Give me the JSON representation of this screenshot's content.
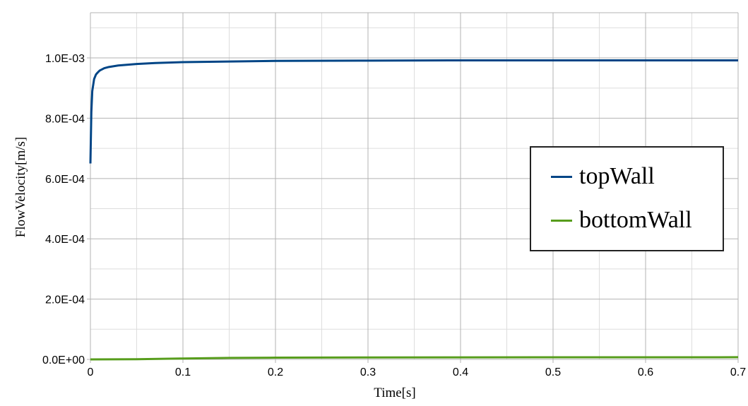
{
  "chart_data": {
    "type": "line",
    "xlabel": "Time[s]",
    "ylabel": "FlowVelocity[m/s]",
    "xlim": [
      0,
      0.7
    ],
    "ylim": [
      0,
      0.00115
    ],
    "x_ticks": [
      "0",
      "0.1",
      "0.2",
      "0.3",
      "0.4",
      "0.5",
      "0.6",
      "0.7"
    ],
    "x_tick_values": [
      0,
      0.1,
      0.2,
      0.3,
      0.4,
      0.5,
      0.6,
      0.7
    ],
    "y_ticks": [
      "0.0E+00",
      "2.0E-04",
      "4.0E-04",
      "6.0E-04",
      "8.0E-04",
      "1.0E-03"
    ],
    "y_tick_values": [
      0,
      0.0002,
      0.0004,
      0.0006,
      0.0008,
      0.001
    ],
    "grid": true,
    "minor_grid": true,
    "legend_position": "right",
    "series": [
      {
        "name": "topWall",
        "color": "#004586",
        "x": [
          0,
          0.001,
          0.002,
          0.004,
          0.006,
          0.008,
          0.01,
          0.015,
          0.02,
          0.03,
          0.05,
          0.07,
          0.1,
          0.15,
          0.2,
          0.3,
          0.4,
          0.5,
          0.6,
          0.7
        ],
        "y": [
          0.00065,
          0.00082,
          0.00089,
          0.00093,
          0.000945,
          0.000952,
          0.000958,
          0.000966,
          0.00097,
          0.000975,
          0.00098,
          0.000983,
          0.000986,
          0.000988,
          0.00099,
          0.000991,
          0.000992,
          0.000992,
          0.000992,
          0.000992
        ]
      },
      {
        "name": "bottomWall",
        "color": "#579d1c",
        "x": [
          0,
          0.05,
          0.1,
          0.15,
          0.2,
          0.3,
          0.4,
          0.5,
          0.6,
          0.7
        ],
        "y": [
          0,
          5e-07,
          3e-06,
          5e-06,
          5.8e-06,
          6.4e-06,
          6.8e-06,
          7e-06,
          7.1e-06,
          7.2e-06
        ]
      }
    ]
  }
}
